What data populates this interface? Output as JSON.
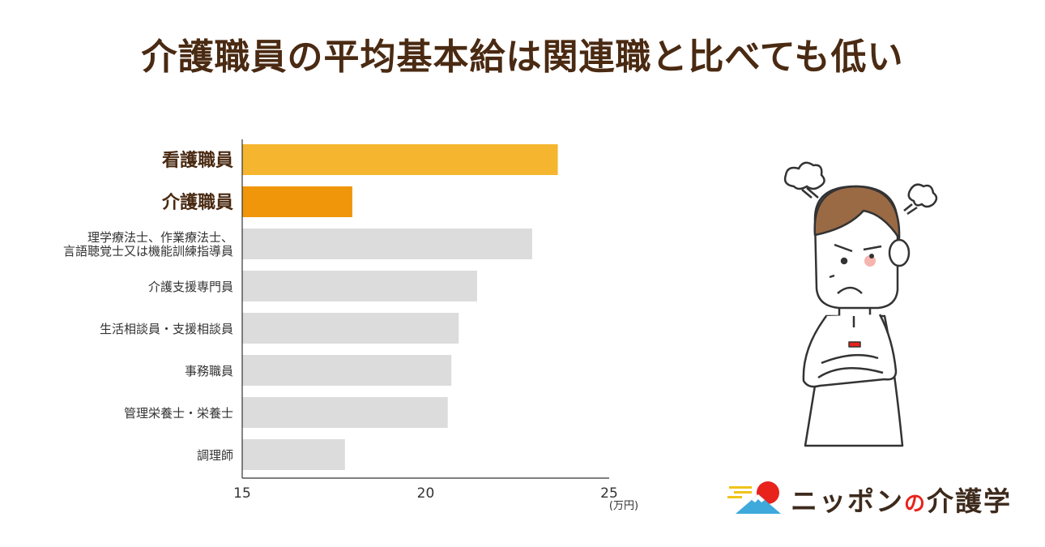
{
  "title": "介護職員の平均基本給は関連職と比べても低い",
  "chart_data": {
    "type": "bar",
    "orientation": "horizontal",
    "categories": [
      "看護職員",
      "介護職員",
      [
        "理学療法士、作業療法士、",
        "言語聴覚士又は機能訓練指導員"
      ],
      "介護支援専門員",
      "生活相談員・支援相談員",
      "事務職員",
      "管理栄養士・栄養士",
      "調理師"
    ],
    "values": [
      23.6,
      18.0,
      22.9,
      21.4,
      20.9,
      20.7,
      20.6,
      17.8
    ],
    "highlight": [
      true,
      true,
      false,
      false,
      false,
      false,
      false,
      false
    ],
    "bar_colors": [
      "#f5b52e",
      "#f0960a",
      "#dcdcdc",
      "#dcdcdc",
      "#dcdcdc",
      "#dcdcdc",
      "#dcdcdc",
      "#dcdcdc"
    ],
    "xlim": [
      15,
      25
    ],
    "xticks": [
      15,
      20,
      25
    ],
    "xunit": "(万円)",
    "label_color_highlight": "#4a2a12",
    "label_color": "#333333"
  },
  "logo": {
    "text_a": "ニッポン",
    "text_no": "の",
    "text_b": "介護学"
  }
}
